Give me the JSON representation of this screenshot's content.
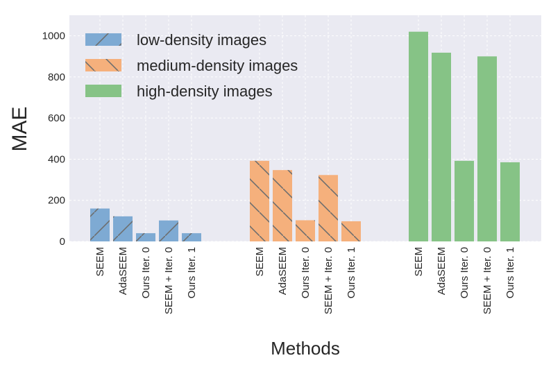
{
  "chart_data": {
    "type": "bar",
    "xlabel": "Methods",
    "ylabel": "MAE",
    "ylim": [
      0,
      1100
    ],
    "yticks": [
      0,
      200,
      400,
      600,
      800,
      1000
    ],
    "grid": true,
    "legend_position": "top-left",
    "groups": [
      {
        "name": "low-density images",
        "color": "#7eaad3",
        "hatch": "/",
        "categories": [
          "SEEM",
          "AdaSEEM",
          "Ours Iter. 0",
          "SEEM + Iter. 0",
          "Ours Iter. 1"
        ],
        "values": [
          160,
          122,
          40,
          102,
          40
        ]
      },
      {
        "name": "medium-density images",
        "color": "#f5b07c",
        "hatch": "\\",
        "categories": [
          "SEEM",
          "AdaSEEM",
          "Ours Iter. 0",
          "SEEM + Iter. 0",
          "Ours Iter. 1"
        ],
        "values": [
          392,
          347,
          103,
          323,
          98
        ]
      },
      {
        "name": "high-density images",
        "color": "#86c386",
        "hatch": "",
        "categories": [
          "SEEM",
          "AdaSEEM",
          "Ours Iter. 0",
          "SEEM + Iter. 0",
          "Ours Iter. 1"
        ],
        "values": [
          1020,
          918,
          392,
          900,
          385
        ]
      }
    ]
  }
}
